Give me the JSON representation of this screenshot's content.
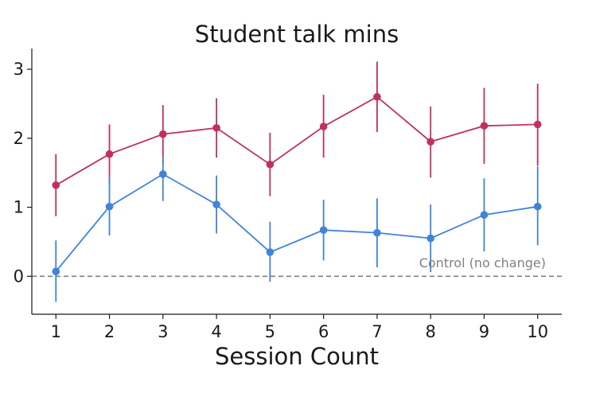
{
  "chart_data": {
    "type": "line",
    "title": "Student talk mins",
    "xlabel": "Session Count",
    "ylabel": "",
    "x": [
      1,
      2,
      3,
      4,
      5,
      6,
      7,
      8,
      9,
      10
    ],
    "xlim": [
      0.55,
      10.45
    ],
    "ylim": [
      -0.55,
      3.3
    ],
    "yticks": [
      0,
      1,
      2,
      3
    ],
    "grid": false,
    "series": [
      {
        "color": "#c03060",
        "values": [
          1.32,
          1.77,
          2.06,
          2.15,
          1.62,
          2.17,
          2.6,
          1.95,
          2.18,
          2.2
        ],
        "err_low": [
          0.87,
          1.34,
          1.62,
          1.72,
          1.16,
          1.72,
          2.09,
          1.43,
          1.63,
          1.6
        ],
        "err_high": [
          1.77,
          2.2,
          2.48,
          2.58,
          2.08,
          2.63,
          3.11,
          2.46,
          2.73,
          2.79
        ]
      },
      {
        "color": "#3f84d9",
        "values": [
          0.07,
          1.01,
          1.48,
          1.04,
          0.35,
          0.67,
          0.63,
          0.55,
          0.89,
          1.01
        ],
        "err_low": [
          -0.37,
          0.59,
          1.09,
          0.62,
          -0.08,
          0.23,
          0.13,
          0.06,
          0.36,
          0.45
        ],
        "err_high": [
          0.52,
          1.44,
          1.72,
          1.46,
          0.79,
          1.11,
          1.13,
          1.04,
          1.42,
          1.59
        ]
      }
    ],
    "reference_line": {
      "y": 0,
      "label": "Control (no change)",
      "color": "#808080",
      "style": "dashed"
    }
  }
}
